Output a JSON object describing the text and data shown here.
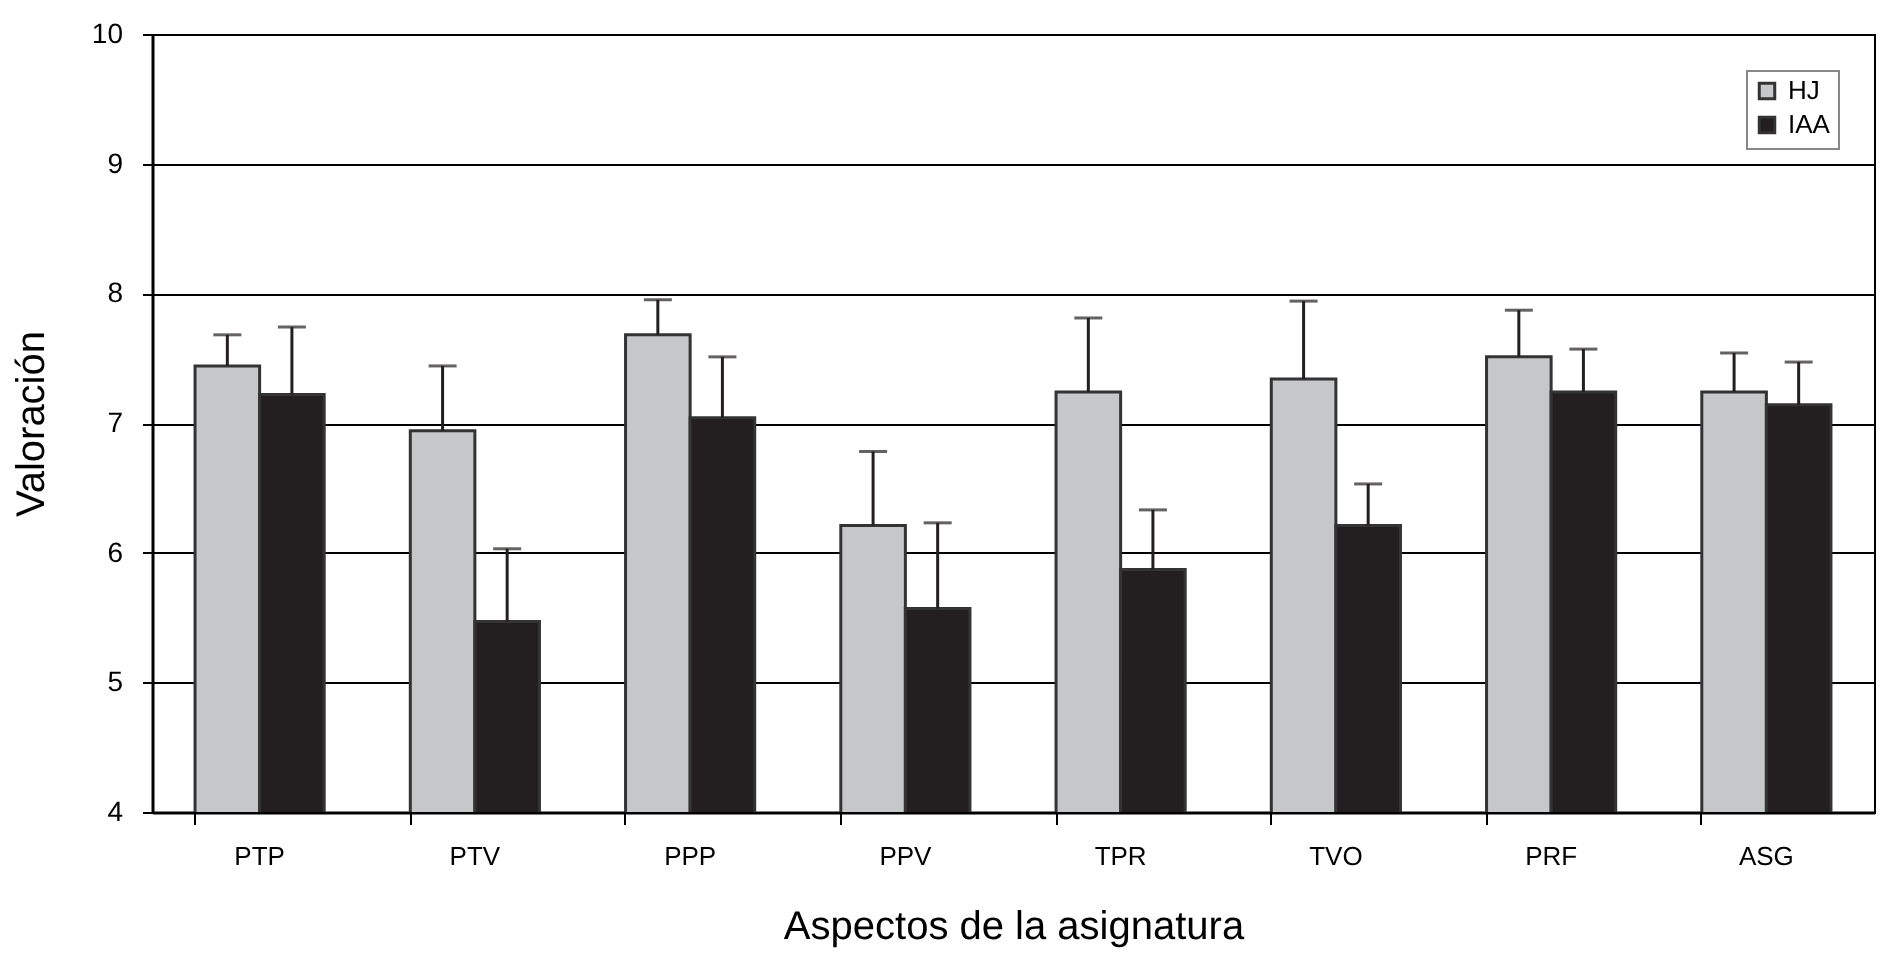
{
  "chart_data": {
    "type": "bar",
    "xlabel": "Aspectos de la asignatura",
    "ylabel": "Valoración",
    "categories": [
      "PTP",
      "PTV",
      "PPP",
      "PPV",
      "TPR",
      "TVO",
      "PRF",
      "ASG"
    ],
    "series": [
      {
        "name": "HJ",
        "color": "#c6c7c9",
        "values": [
          7.44,
          6.94,
          7.68,
          6.21,
          7.24,
          7.34,
          7.51,
          7.24
        ],
        "errors": [
          [
            7.44,
            7.68
          ],
          [
            6.94,
            7.44
          ],
          [
            7.68,
            7.95
          ],
          [
            6.21,
            6.78
          ],
          [
            7.24,
            7.81
          ],
          [
            7.34,
            7.94
          ],
          [
            7.51,
            7.87
          ],
          [
            7.24,
            7.54
          ]
        ]
      },
      {
        "name": "IAA",
        "color": "#231f20",
        "values": [
          7.22,
          5.47,
          7.04,
          5.57,
          5.87,
          6.21,
          7.24,
          7.14
        ],
        "errors": [
          [
            7.22,
            7.74
          ],
          [
            5.47,
            6.03
          ],
          [
            7.04,
            7.51
          ],
          [
            5.57,
            6.23
          ],
          [
            5.87,
            6.33
          ],
          [
            6.21,
            6.53
          ],
          [
            7.24,
            7.57
          ],
          [
            7.14,
            7.47
          ]
        ]
      }
    ],
    "ylim": [
      4,
      10
    ],
    "yticks": [
      4,
      5,
      6,
      7,
      8,
      9,
      10
    ],
    "grid": "y",
    "legend": "top right"
  }
}
